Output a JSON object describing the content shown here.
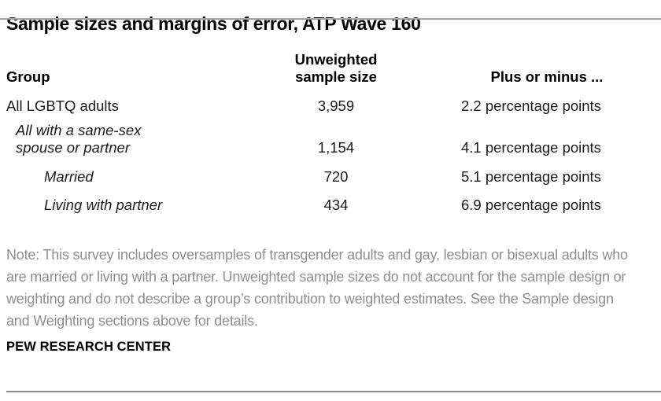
{
  "page": {
    "title": "Sample sizes and margins of error, ATP Wave 160",
    "note": "Note: This survey includes oversamples of transgender adults and gay, lesbian or bisexual adults who are married or living with a partner. Unweighted sample sizes do not account for the sample design or weighting and do not describe a group’s contribution to weighted estimates. See the Sample design and Weighting sections above for details.",
    "source_label": "PEW RESEARCH CENTER"
  },
  "table": {
    "columns": [
      {
        "label": "Group"
      },
      {
        "label": "Unweighted sample size"
      },
      {
        "label": "Plus or minus ..."
      }
    ],
    "rows": [
      {
        "group": "All LGBTQ adults",
        "sample_size": "3,959",
        "margin_of_error": "2.2 percentage points",
        "indent": 0,
        "italic": false
      },
      {
        "group": "All with a same-sex spouse or partner",
        "sample_size": "1,154",
        "margin_of_error": "4.1 percentage points",
        "indent": 1,
        "italic": true
      },
      {
        "group": "Married",
        "sample_size": "720",
        "margin_of_error": "5.1 percentage points",
        "indent": 2,
        "italic": true
      },
      {
        "group": "Living with partner",
        "sample_size": "434",
        "margin_of_error": "6.9 percentage points",
        "indent": 2,
        "italic": true
      }
    ]
  },
  "chart_data": {
    "type": "table",
    "title": "Sample sizes and margins of error, ATP Wave 160",
    "columns": [
      "Group",
      "Unweighted sample size",
      "Plus or minus ..."
    ],
    "rows": [
      [
        "All LGBTQ adults",
        "3,959",
        "2.2 percentage points"
      ],
      [
        "All with a same-sex spouse or partner",
        "1,154",
        "4.1 percentage points"
      ],
      [
        "Married",
        "720",
        "5.1 percentage points"
      ],
      [
        "Living with partner",
        "434",
        "6.9 percentage points"
      ]
    ],
    "sample_sizes_numeric": [
      3959,
      1154,
      720,
      434
    ],
    "margins_of_error_pp": [
      2.2,
      4.1,
      5.1,
      6.9
    ],
    "note": "Note: This survey includes oversamples of transgender adults and gay, lesbian or bisexual adults who are married or living with a partner. Unweighted sample sizes do not account for the sample design or weighting and do not describe a group’s contribution to weighted estimates. See the Sample design and Weighting sections above for details.",
    "source": "PEW RESEARCH CENTER"
  },
  "colors": {
    "title_text": "#000000",
    "body_text": "#1a1a1a",
    "note_text": "#8e8e8e",
    "rule": "#9b9b9b",
    "background": "#ffffff"
  }
}
